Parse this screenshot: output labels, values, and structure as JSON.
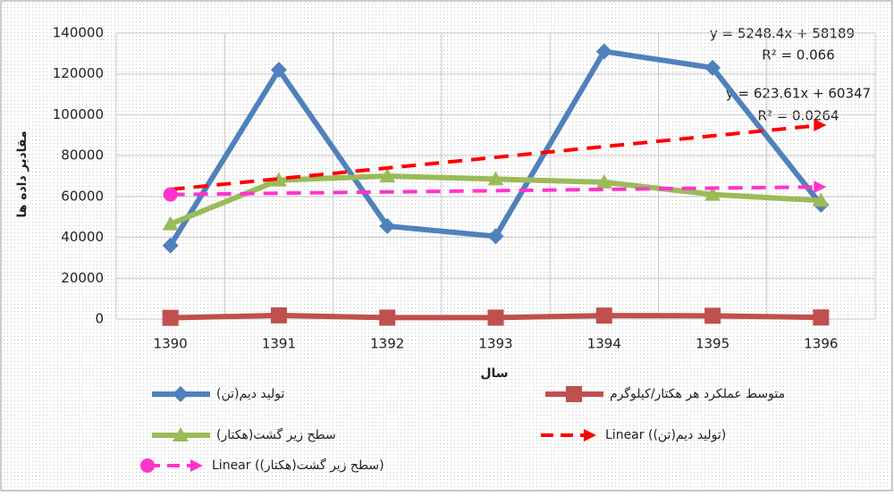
{
  "chart_data": {
    "type": "line",
    "categories": [
      "1390",
      "1391",
      "1392",
      "1393",
      "1394",
      "1395",
      "1396"
    ],
    "series": [
      {
        "name": "تولید دیم(تن)",
        "color": "#4f81bd",
        "marker": "diamond",
        "values": [
          36000,
          122000,
          45500,
          40500,
          131000,
          123000,
          56000
        ]
      },
      {
        "name": "متوسط عملکرد هر هکتار/کیلوگرم",
        "color": "#c0504d",
        "marker": "square",
        "values": [
          600,
          1800,
          700,
          700,
          1700,
          1600,
          800
        ]
      },
      {
        "name": "سطح زیر گشت(هکتار)",
        "color": "#9bbb59",
        "marker": "triangle",
        "values": [
          46500,
          68000,
          70000,
          68500,
          67000,
          61000,
          58000
        ]
      },
      {
        "name": "Linear (تولید دیم(تن))",
        "color": "#ff0000",
        "dash": true,
        "values": [
          63437,
          68686,
          73934,
          79183,
          84431,
          89680,
          94928
        ]
      },
      {
        "name": "Linear (سطح زیر گشت(هکتار))",
        "color": "#ff33cc",
        "dash": true,
        "marker": "circle",
        "values": [
          60971,
          61594,
          62218,
          62841,
          63465,
          64089,
          64712
        ]
      }
    ],
    "ylabel": "مقادیر داده ها",
    "xlabel": "سال",
    "annotations": [
      "y = 5248.4x + 58189",
      "R² = 0.066",
      "y = 623.61x + 60347",
      "R² = 0.0264"
    ],
    "ylim": [
      0,
      140000
    ],
    "yticks": [
      0,
      20000,
      40000,
      60000,
      80000,
      100000,
      120000,
      140000
    ],
    "grid": true
  }
}
